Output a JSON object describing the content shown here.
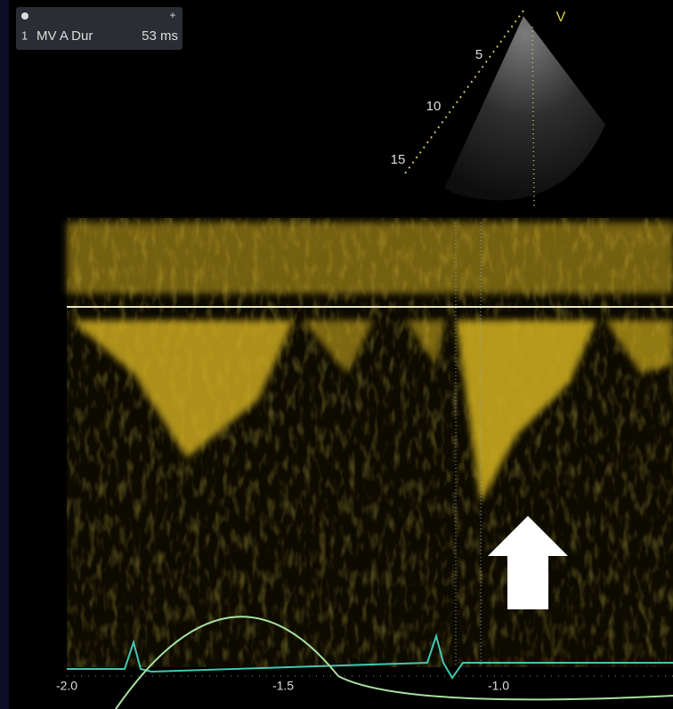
{
  "measurement": {
    "index": "1",
    "label": "MV A Dur",
    "value": "53 ms"
  },
  "sector": {
    "marker": "V",
    "depth_labels": [
      "5",
      "10",
      "15"
    ]
  },
  "time_axis": {
    "labels": [
      "-2.0",
      "-1.5",
      "-1.0"
    ]
  }
}
